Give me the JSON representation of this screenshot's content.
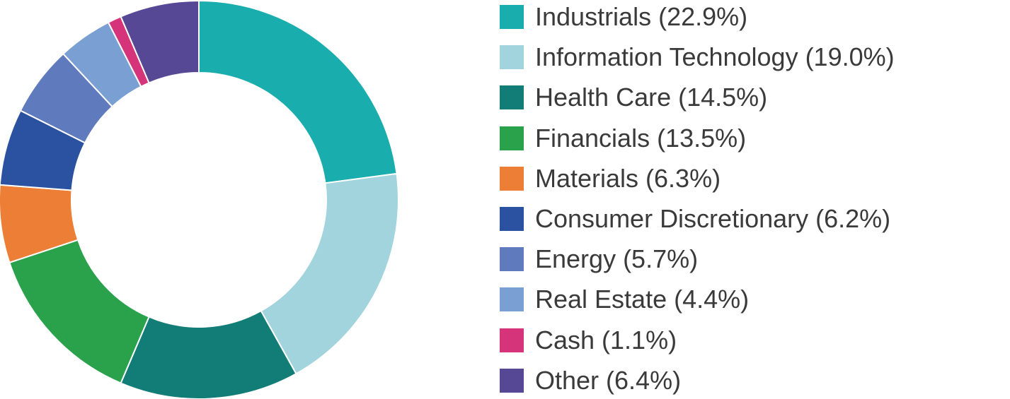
{
  "chart_data": {
    "type": "pie",
    "variant": "donut",
    "title": "",
    "legend_position": "right",
    "slices": [
      {
        "label": "Industrials (22.9%)",
        "name": "Industrials",
        "value": 22.9,
        "color": "#1aadad"
      },
      {
        "label": "Information Technology (19.0%)",
        "name": "Information Technology",
        "value": 19.0,
        "color": "#a2d4dd"
      },
      {
        "label": "Health Care (14.5%)",
        "name": "Health Care",
        "value": 14.5,
        "color": "#127c76"
      },
      {
        "label": "Financials (13.5%)",
        "name": "Financials",
        "value": 13.5,
        "color": "#29a24b"
      },
      {
        "label": "Materials (6.3%)",
        "name": "Materials",
        "value": 6.3,
        "color": "#ec7f35"
      },
      {
        "label": "Consumer Discretionary (6.2%)",
        "name": "Consumer Discretionary",
        "value": 6.2,
        "color": "#2a52a0"
      },
      {
        "label": "Energy (5.7%)",
        "name": "Energy",
        "value": 5.7,
        "color": "#5f7bbd"
      },
      {
        "label": "Real Estate (4.4%)",
        "name": "Real Estate",
        "value": 4.4,
        "color": "#7aa0d3"
      },
      {
        "label": "Cash (1.1%)",
        "name": "Cash",
        "value": 1.1,
        "color": "#d5347a"
      },
      {
        "label": "Other (6.4%)",
        "name": "Other",
        "value": 6.4,
        "color": "#574896"
      }
    ]
  }
}
